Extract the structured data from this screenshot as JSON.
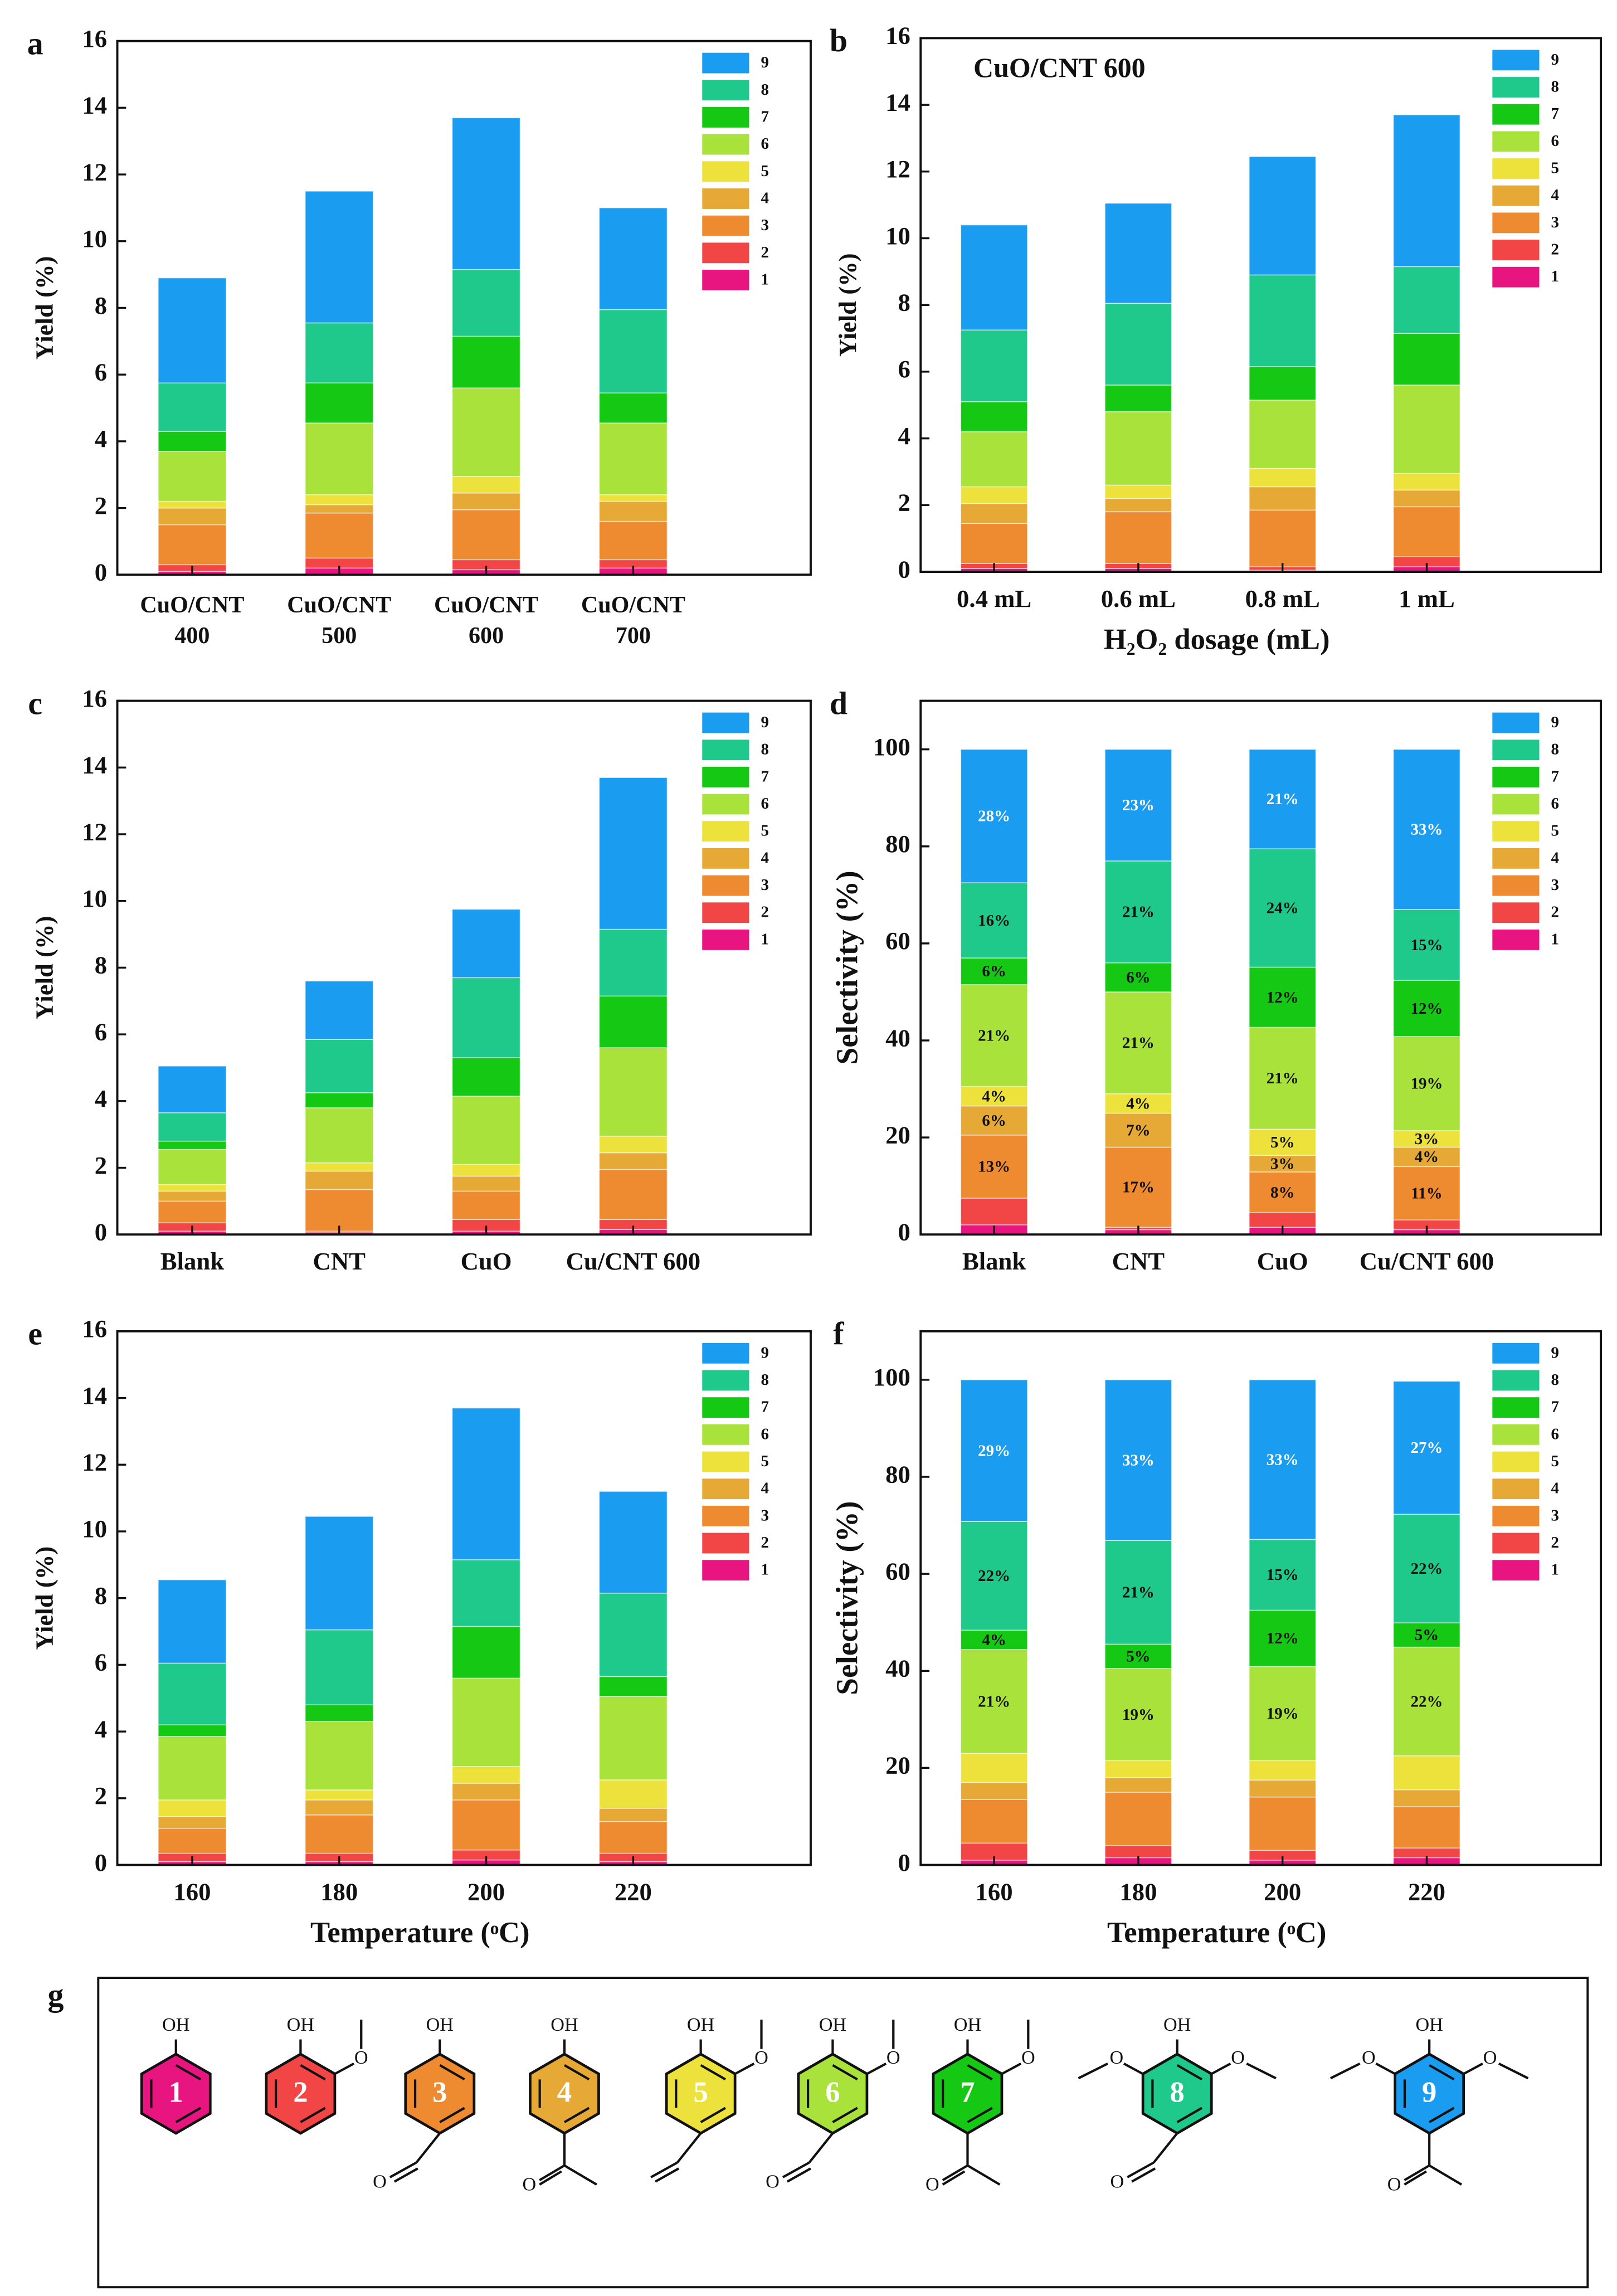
{
  "chart_data": [
    {
      "type": "bar",
      "stacked": true,
      "label": "a",
      "ylabel": "Yield (%)",
      "categories": [
        [
          "CuO/CNT",
          "400"
        ],
        [
          "CuO/CNT",
          "500"
        ],
        [
          "CuO/CNT",
          "600"
        ],
        [
          "CuO/CNT",
          "700"
        ]
      ],
      "ylim": [
        0,
        16
      ],
      "yticks": [
        0,
        2,
        4,
        6,
        8,
        10,
        12,
        14,
        16
      ],
      "legend": "upper right",
      "series": [
        {
          "name": "1",
          "color": "#e8147f",
          "values": [
            0.1,
            0.2,
            0.15,
            0.2
          ]
        },
        {
          "name": "2",
          "color": "#f24545",
          "values": [
            0.2,
            0.3,
            0.3,
            0.25
          ]
        },
        {
          "name": "3",
          "color": "#ee8a2f",
          "values": [
            1.2,
            1.35,
            1.5,
            1.15
          ]
        },
        {
          "name": "4",
          "color": "#e6a935",
          "values": [
            0.5,
            0.25,
            0.5,
            0.6
          ]
        },
        {
          "name": "5",
          "color": "#ede23b",
          "values": [
            0.2,
            0.3,
            0.5,
            0.2
          ]
        },
        {
          "name": "6",
          "color": "#a8e23a",
          "values": [
            1.5,
            2.15,
            2.65,
            2.15
          ]
        },
        {
          "name": "7",
          "color": "#14c814",
          "values": [
            0.6,
            1.2,
            1.55,
            0.9
          ]
        },
        {
          "name": "8",
          "color": "#1fc88b",
          "values": [
            1.45,
            1.8,
            2.0,
            2.5
          ]
        },
        {
          "name": "9",
          "color": "#1a9df0",
          "values": [
            3.15,
            3.95,
            4.55,
            3.05
          ]
        }
      ]
    },
    {
      "type": "bar",
      "stacked": true,
      "label": "b",
      "ylabel": "Yield (%)",
      "xlabel": "H₂O₂ dosage (mL)",
      "annotation": "CuO/CNT 600",
      "categories": [
        "0.4 mL",
        "0.6 mL",
        "0.8 mL",
        "1 mL"
      ],
      "ylim": [
        0,
        16
      ],
      "yticks": [
        0,
        2,
        4,
        6,
        8,
        10,
        12,
        14,
        16
      ],
      "legend": "upper right",
      "series": [
        {
          "name": "1",
          "color": "#e8147f",
          "values": [
            0.1,
            0.1,
            0.05,
            0.15
          ]
        },
        {
          "name": "2",
          "color": "#f24545",
          "values": [
            0.15,
            0.15,
            0.1,
            0.3
          ]
        },
        {
          "name": "3",
          "color": "#ee8a2f",
          "values": [
            1.2,
            1.55,
            1.7,
            1.5
          ]
        },
        {
          "name": "4",
          "color": "#e6a935",
          "values": [
            0.6,
            0.4,
            0.7,
            0.5
          ]
        },
        {
          "name": "5",
          "color": "#ede23b",
          "values": [
            0.5,
            0.4,
            0.55,
            0.5
          ]
        },
        {
          "name": "6",
          "color": "#a8e23a",
          "values": [
            1.65,
            2.2,
            2.05,
            2.65
          ]
        },
        {
          "name": "7",
          "color": "#14c814",
          "values": [
            0.9,
            0.8,
            1.0,
            1.55
          ]
        },
        {
          "name": "8",
          "color": "#1fc88b",
          "values": [
            2.15,
            2.45,
            2.75,
            2.0
          ]
        },
        {
          "name": "9",
          "color": "#1a9df0",
          "values": [
            3.15,
            3.0,
            3.55,
            4.55
          ]
        }
      ]
    },
    {
      "type": "bar",
      "stacked": true,
      "label": "c",
      "ylabel": "Yield (%)",
      "categories": [
        "Blank",
        "CNT",
        "CuO",
        "Cu/CNT 600"
      ],
      "ylim": [
        0,
        16
      ],
      "yticks": [
        0,
        2,
        4,
        6,
        8,
        10,
        12,
        14,
        16
      ],
      "legend": "upper right",
      "series": [
        {
          "name": "1",
          "color": "#e8147f",
          "values": [
            0.1,
            0.05,
            0.1,
            0.15
          ]
        },
        {
          "name": "2",
          "color": "#f24545",
          "values": [
            0.25,
            0.05,
            0.35,
            0.3
          ]
        },
        {
          "name": "3",
          "color": "#ee8a2f",
          "values": [
            0.65,
            1.25,
            0.85,
            1.5
          ]
        },
        {
          "name": "4",
          "color": "#e6a935",
          "values": [
            0.3,
            0.55,
            0.45,
            0.5
          ]
        },
        {
          "name": "5",
          "color": "#ede23b",
          "values": [
            0.2,
            0.25,
            0.35,
            0.5
          ]
        },
        {
          "name": "6",
          "color": "#a8e23a",
          "values": [
            1.05,
            1.65,
            2.05,
            2.65
          ]
        },
        {
          "name": "7",
          "color": "#14c814",
          "values": [
            0.25,
            0.45,
            1.15,
            1.55
          ]
        },
        {
          "name": "8",
          "color": "#1fc88b",
          "values": [
            0.85,
            1.6,
            2.4,
            2.0
          ]
        },
        {
          "name": "9",
          "color": "#1a9df0",
          "values": [
            1.4,
            1.75,
            2.05,
            4.55
          ]
        }
      ]
    },
    {
      "type": "bar",
      "stacked": true,
      "label": "d",
      "ylabel": "Selectivity (%)",
      "categories": [
        "Blank",
        "CNT",
        "CuO",
        "Cu/CNT 600"
      ],
      "ylim": [
        0,
        110
      ],
      "yticks": [
        0,
        20,
        40,
        60,
        80,
        100
      ],
      "legend": "upper right",
      "series": [
        {
          "name": "1",
          "color": "#e8147f",
          "values": [
            2,
            1,
            1.5,
            1
          ]
        },
        {
          "name": "2",
          "color": "#f24545",
          "values": [
            5.5,
            0.5,
            3,
            2
          ]
        },
        {
          "name": "3",
          "color": "#ee8a2f",
          "values": [
            13,
            16.5,
            8.4,
            11
          ],
          "value_labels": [
            "13%",
            "17%",
            "8%",
            "11%"
          ]
        },
        {
          "name": "4",
          "color": "#e6a935",
          "values": [
            6,
            7,
            3.4,
            4
          ],
          "value_labels": [
            "6%",
            "7%",
            "3%",
            "4%"
          ]
        },
        {
          "name": "5",
          "color": "#ede23b",
          "values": [
            4,
            4,
            5.4,
            3.4
          ],
          "value_labels": [
            "4%",
            "4%",
            "5%",
            "3%"
          ]
        },
        {
          "name": "6",
          "color": "#a8e23a",
          "values": [
            21,
            21,
            21,
            19.4
          ],
          "value_labels": [
            "21%",
            "21%",
            "21%",
            "19%"
          ]
        },
        {
          "name": "7",
          "color": "#14c814",
          "values": [
            5.5,
            6,
            12.4,
            11.6
          ],
          "value_labels": [
            "6%",
            "6%",
            "12%",
            "12%"
          ]
        },
        {
          "name": "8",
          "color": "#1fc88b",
          "values": [
            15.5,
            21,
            24.4,
            14.6
          ],
          "value_labels": [
            "16%",
            "21%",
            "24%",
            "15%"
          ]
        },
        {
          "name": "9",
          "color": "#1a9df0",
          "values": [
            27.5,
            23,
            20.5,
            33
          ],
          "value_labels": [
            "28%",
            "23%",
            "21%",
            "33%"
          ]
        }
      ]
    },
    {
      "type": "bar",
      "stacked": true,
      "label": "e",
      "ylabel": "Yield (%)",
      "xlabel": "Temperature (ᵒC)",
      "categories": [
        "160",
        "180",
        "200",
        "220"
      ],
      "ylim": [
        0,
        16
      ],
      "yticks": [
        0,
        2,
        4,
        6,
        8,
        10,
        12,
        14,
        16
      ],
      "legend": "upper right",
      "series": [
        {
          "name": "1",
          "color": "#e8147f",
          "values": [
            0.1,
            0.1,
            0.15,
            0.1
          ]
        },
        {
          "name": "2",
          "color": "#f24545",
          "values": [
            0.25,
            0.25,
            0.3,
            0.25
          ]
        },
        {
          "name": "3",
          "color": "#ee8a2f",
          "values": [
            0.75,
            1.15,
            1.5,
            0.95
          ]
        },
        {
          "name": "4",
          "color": "#e6a935",
          "values": [
            0.35,
            0.45,
            0.5,
            0.4
          ]
        },
        {
          "name": "5",
          "color": "#ede23b",
          "values": [
            0.5,
            0.3,
            0.5,
            0.85
          ]
        },
        {
          "name": "6",
          "color": "#a8e23a",
          "values": [
            1.9,
            2.05,
            2.65,
            2.5
          ]
        },
        {
          "name": "7",
          "color": "#14c814",
          "values": [
            0.35,
            0.5,
            1.55,
            0.6
          ]
        },
        {
          "name": "8",
          "color": "#1fc88b",
          "values": [
            1.85,
            2.25,
            2.0,
            2.5
          ]
        },
        {
          "name": "9",
          "color": "#1a9df0",
          "values": [
            2.5,
            3.4,
            4.55,
            3.05
          ]
        }
      ]
    },
    {
      "type": "bar",
      "stacked": true,
      "label": "f",
      "ylabel": "Selectivity (%)",
      "xlabel": "Temperature (ᵒC)",
      "categories": [
        "160",
        "180",
        "200",
        "220"
      ],
      "ylim": [
        0,
        110
      ],
      "yticks": [
        0,
        20,
        40,
        60,
        80,
        100
      ],
      "legend": "upper right",
      "series": [
        {
          "name": "1",
          "color": "#e8147f",
          "values": [
            1,
            1.5,
            1,
            1.5
          ]
        },
        {
          "name": "2",
          "color": "#f24545",
          "values": [
            3.5,
            2.5,
            2,
            2
          ]
        },
        {
          "name": "3",
          "color": "#ee8a2f",
          "values": [
            9,
            11,
            11,
            8.5
          ]
        },
        {
          "name": "4",
          "color": "#e6a935",
          "values": [
            3.5,
            3,
            3.5,
            3.5
          ]
        },
        {
          "name": "5",
          "color": "#ede23b",
          "values": [
            6,
            3.5,
            4,
            7
          ]
        },
        {
          "name": "6",
          "color": "#a8e23a",
          "values": [
            21.4,
            19,
            19.4,
            22.4
          ],
          "value_labels": [
            "21%",
            "19%",
            "19%",
            "22%"
          ]
        },
        {
          "name": "7",
          "color": "#14c814",
          "values": [
            4,
            5,
            11.6,
            5
          ],
          "value_labels": [
            "4%",
            "5%",
            "12%",
            "5%"
          ]
        },
        {
          "name": "8",
          "color": "#1fc88b",
          "values": [
            22.4,
            21.4,
            14.6,
            22.4
          ],
          "value_labels": [
            "22%",
            "21%",
            "15%",
            "22%"
          ]
        },
        {
          "name": "9",
          "color": "#1a9df0",
          "values": [
            29.2,
            33.1,
            32.9,
            27.4
          ],
          "value_labels": [
            "29%",
            "33%",
            "33%",
            "27%"
          ]
        }
      ]
    }
  ],
  "structures": {
    "label": "g",
    "compounds": [
      {
        "number": "1",
        "texts": [
          "OH"
        ]
      },
      {
        "number": "2",
        "texts": [
          "OH",
          "O"
        ]
      },
      {
        "number": "3",
        "texts": [
          "OH",
          "O"
        ]
      },
      {
        "number": "4",
        "texts": [
          "OH",
          "O"
        ]
      },
      {
        "number": "5",
        "texts": [
          "OH",
          "O"
        ]
      },
      {
        "number": "6",
        "texts": [
          "OH",
          "O",
          "O"
        ]
      },
      {
        "number": "7",
        "texts": [
          "OH",
          "O",
          "O"
        ]
      },
      {
        "number": "8",
        "texts": [
          "OH",
          "O",
          "O",
          "O"
        ]
      },
      {
        "number": "9",
        "texts": [
          "OH",
          "O",
          "O",
          "O"
        ]
      }
    ]
  }
}
